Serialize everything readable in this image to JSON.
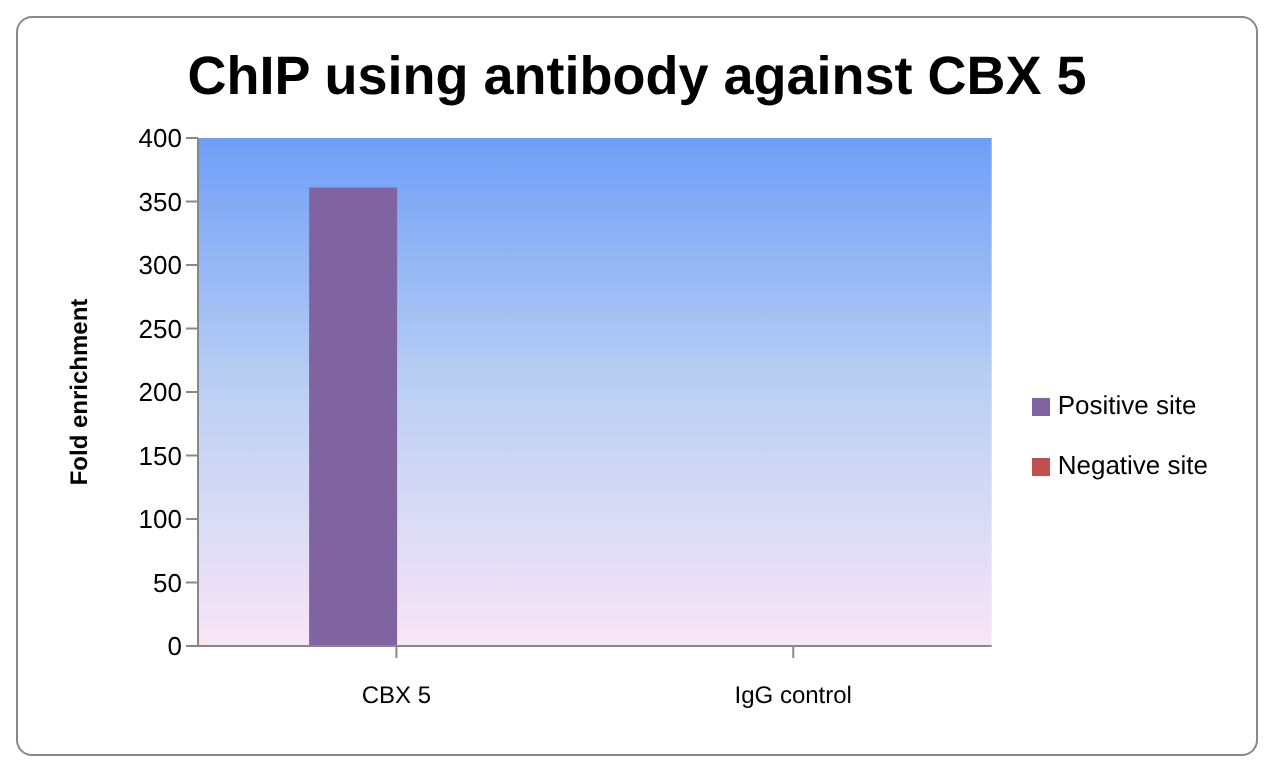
{
  "chart_data": {
    "type": "bar",
    "title": "ChIP using antibody against CBX 5",
    "ylabel": "Fold enrichment",
    "categories": [
      "CBX 5",
      "IgG control"
    ],
    "series": [
      {
        "name": "Positive site",
        "color": "#8064a2",
        "values": [
          361,
          0
        ]
      },
      {
        "name": "Negative site",
        "color": "#c0504d",
        "values": [
          0,
          0
        ]
      }
    ],
    "ylim": [
      0,
      400
    ],
    "yticks": [
      0,
      50,
      100,
      150,
      200,
      250,
      300,
      350,
      400
    ],
    "grid": false,
    "legend": "right"
  }
}
